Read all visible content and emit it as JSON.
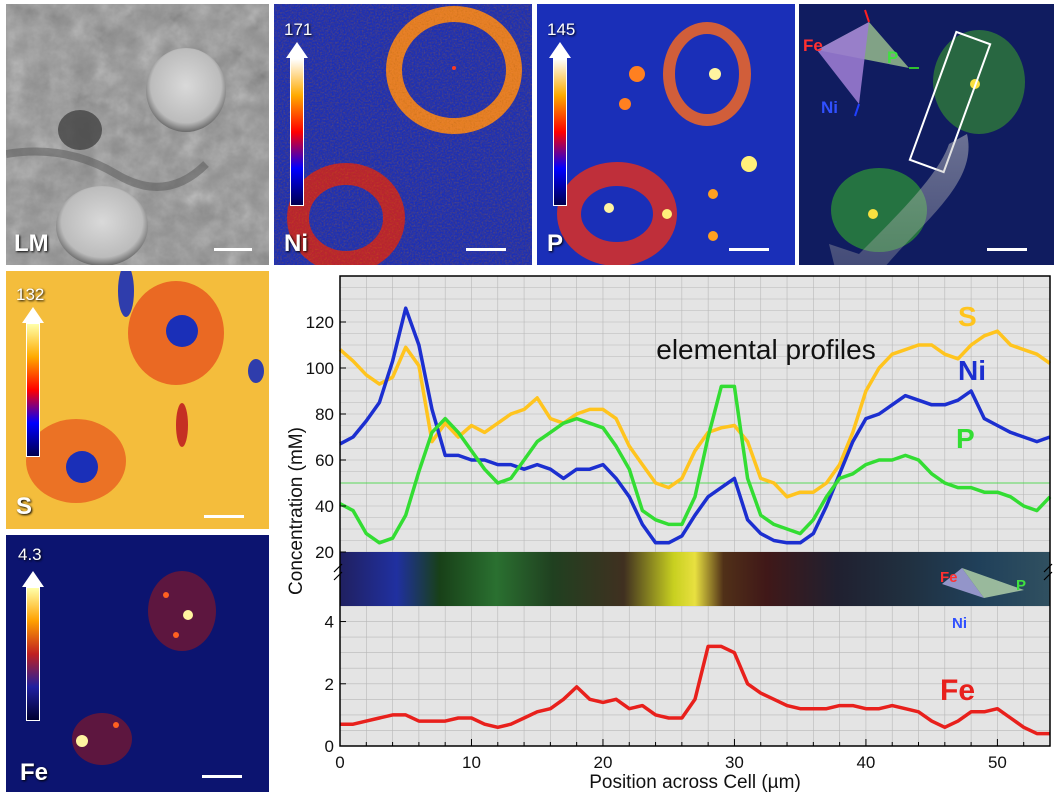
{
  "panels": {
    "lm": {
      "label": "LM"
    },
    "ni": {
      "label": "Ni",
      "max": "171"
    },
    "p": {
      "label": "P",
      "max": "145"
    },
    "rgb": {
      "fe": "Fe",
      "p": "P",
      "ni": "Ni"
    },
    "s": {
      "label": "S",
      "max": "132"
    },
    "fe": {
      "label": "Fe",
      "max": "4.3"
    }
  },
  "colors": {
    "S": "#ffc41e",
    "Ni": "#1c2fd0",
    "P": "#33dd33",
    "Fe": "#e8201c",
    "map_bg": "#1a2fb8",
    "fe_map_bg": "#0c1470"
  },
  "chart_data": {
    "type": "line",
    "annotation": "elemental profiles",
    "xlabel": "Position across Cell (µm)",
    "ylabel": "Concentration (mM)",
    "xlim": [
      0,
      54
    ],
    "x_ticks": [
      0,
      10,
      20,
      30,
      40,
      50
    ],
    "upper_ylim": [
      20,
      140
    ],
    "upper_yticks": [
      20,
      40,
      60,
      80,
      100,
      120
    ],
    "lower_ylim": [
      0,
      4.5
    ],
    "lower_yticks": [
      0,
      2,
      4
    ],
    "grid": true,
    "reference_line": 50,
    "series": [
      {
        "name": "S",
        "x": [
          0,
          1,
          2,
          3,
          4,
          5,
          6,
          7,
          8,
          9,
          10,
          11,
          12,
          13,
          14,
          15,
          16,
          17,
          18,
          19,
          20,
          21,
          22,
          23,
          24,
          25,
          26,
          27,
          28,
          29,
          30,
          31,
          32,
          33,
          34,
          35,
          36,
          37,
          38,
          39,
          40,
          41,
          42,
          43,
          44,
          45,
          46,
          47,
          48,
          49,
          50,
          51,
          52,
          53,
          54
        ],
        "values": [
          108,
          103,
          97,
          93,
          96,
          109,
          101,
          68,
          76,
          70,
          75,
          72,
          76,
          80,
          82,
          87,
          78,
          76,
          80,
          82,
          82,
          78,
          66,
          58,
          50,
          48,
          52,
          64,
          72,
          74,
          75,
          68,
          52,
          50,
          44,
          46,
          46,
          50,
          58,
          72,
          90,
          100,
          106,
          108,
          110,
          110,
          106,
          104,
          110,
          114,
          116,
          110,
          108,
          106,
          102
        ]
      },
      {
        "name": "Ni",
        "x": [
          0,
          1,
          2,
          3,
          4,
          5,
          6,
          7,
          8,
          9,
          10,
          11,
          12,
          13,
          14,
          15,
          16,
          17,
          18,
          19,
          20,
          21,
          22,
          23,
          24,
          25,
          26,
          27,
          28,
          29,
          30,
          31,
          32,
          33,
          34,
          35,
          36,
          37,
          38,
          39,
          40,
          41,
          42,
          43,
          44,
          45,
          46,
          47,
          48,
          49,
          50,
          51,
          52,
          53,
          54
        ],
        "values": [
          67,
          70,
          77,
          85,
          103,
          126,
          110,
          82,
          62,
          62,
          60,
          60,
          58,
          58,
          56,
          58,
          56,
          52,
          56,
          56,
          58,
          52,
          44,
          32,
          24,
          24,
          27,
          36,
          44,
          48,
          52,
          34,
          28,
          25,
          24,
          24,
          28,
          40,
          54,
          68,
          78,
          80,
          84,
          88,
          86,
          84,
          84,
          86,
          90,
          78,
          75,
          72,
          70,
          68,
          70
        ]
      },
      {
        "name": "P",
        "x": [
          0,
          1,
          2,
          3,
          4,
          5,
          6,
          7,
          8,
          9,
          10,
          11,
          12,
          13,
          14,
          15,
          16,
          17,
          18,
          19,
          20,
          21,
          22,
          23,
          24,
          25,
          26,
          27,
          28,
          29,
          30,
          31,
          32,
          33,
          34,
          35,
          36,
          37,
          38,
          39,
          40,
          41,
          42,
          43,
          44,
          45,
          46,
          47,
          48,
          49,
          50,
          51,
          52,
          53,
          54
        ],
        "values": [
          41,
          38,
          28,
          24,
          26,
          36,
          55,
          72,
          78,
          72,
          64,
          56,
          50,
          52,
          60,
          68,
          72,
          76,
          78,
          76,
          74,
          66,
          56,
          38,
          34,
          32,
          32,
          44,
          70,
          92,
          92,
          52,
          36,
          32,
          30,
          28,
          34,
          44,
          52,
          54,
          58,
          60,
          60,
          62,
          60,
          54,
          50,
          48,
          48,
          46,
          46,
          44,
          40,
          38,
          44
        ]
      },
      {
        "name": "Fe",
        "x": [
          0,
          1,
          2,
          3,
          4,
          5,
          6,
          7,
          8,
          9,
          10,
          11,
          12,
          13,
          14,
          15,
          16,
          17,
          18,
          19,
          20,
          21,
          22,
          23,
          24,
          25,
          26,
          27,
          28,
          29,
          30,
          31,
          32,
          33,
          34,
          35,
          36,
          37,
          38,
          39,
          40,
          41,
          42,
          43,
          44,
          45,
          46,
          47,
          48,
          49,
          50,
          51,
          52,
          53,
          54
        ],
        "values": [
          0.7,
          0.7,
          0.8,
          0.9,
          1.0,
          1.0,
          0.8,
          0.8,
          0.8,
          0.9,
          0.9,
          0.7,
          0.6,
          0.7,
          0.9,
          1.1,
          1.2,
          1.5,
          1.9,
          1.5,
          1.4,
          1.5,
          1.2,
          1.3,
          1.0,
          0.9,
          0.9,
          1.5,
          3.2,
          3.2,
          3.0,
          2.0,
          1.7,
          1.5,
          1.3,
          1.2,
          1.2,
          1.2,
          1.3,
          1.3,
          1.2,
          1.2,
          1.3,
          1.2,
          1.1,
          0.8,
          0.6,
          0.8,
          1.1,
          1.1,
          1.2,
          0.9,
          0.6,
          0.4,
          0.4
        ]
      }
    ]
  }
}
